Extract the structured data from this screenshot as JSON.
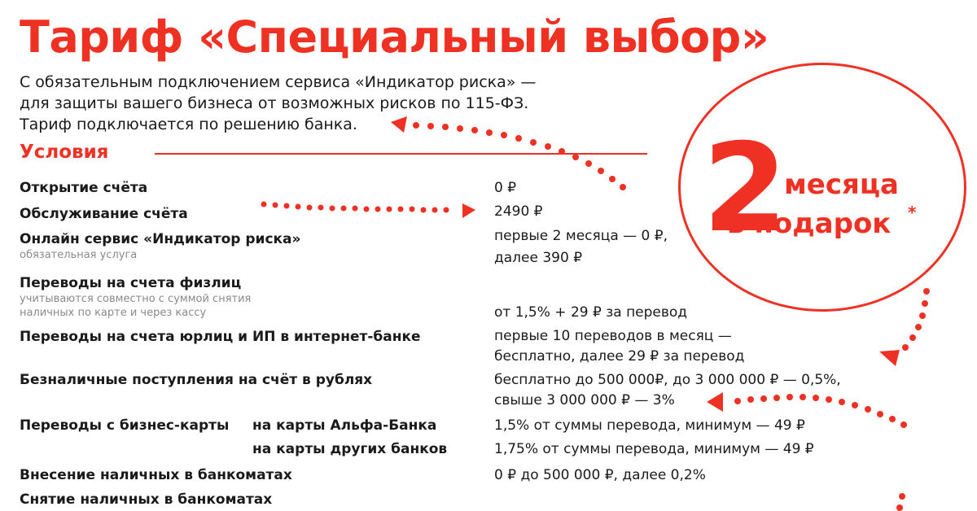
{
  "title": "Тариф «Специальный выбор»",
  "subtitle": [
    "С обязательным подключением сервиса «Индикатор риска» —",
    "для защиты вашего бизнеса от возможных рисков по 115-ФЗ.",
    "Тариф подключается по решению банка."
  ],
  "section_title": "Условия",
  "rows": [
    {
      "label": "Открытие счёта",
      "value": "0 ₽"
    },
    {
      "label": "Обслуживание счёта",
      "value": "2490 ₽"
    },
    {
      "label": "Онлайн сервис «Индикатор риска»",
      "sub": "обязательная услуга",
      "value": "первые 2 месяца — 0 ₽,",
      "value2": "далее 390 ₽"
    },
    {
      "label": "Переводы на счета физлиц",
      "sub": "учитываются совместно с суммой снятия",
      "sub2": "наличных по карте и через кассу",
      "value": "от 1,5% + 29 ₽ за перевод"
    },
    {
      "label": "Переводы на счета юрлиц и ИП в интернет-банке",
      "value": "первые 10 переводов в месяц —",
      "value2": "бесплатно, далее 29 ₽ за перевод"
    },
    {
      "label": "Безналичные поступления на счёт в рублях",
      "value": "бесплатно до 500 000₽, до 3 000 000 ₽ — 0,5%,",
      "value2": "свыше 3 000 000 ₽ — 3%"
    },
    {
      "label": "Переводы с бизнес-карты",
      "label2": "на карты Альфа-Банка",
      "value": "1,5% от суммы перевода, минимум — 49 ₽"
    },
    {
      "label2": "на карты других банков",
      "value": "1,75% от суммы перевода, минимум — 49 ₽"
    },
    {
      "label": "Внесение наличных в банкоматах",
      "value": "0 ₽ до 500 000 ₽, далее 0,2%"
    },
    {
      "label": "Снятие наличных в банкоматах"
    }
  ],
  "badge": {
    "number": "2",
    "line1": "месяца",
    "line2": "в подарок",
    "mark": "*"
  },
  "colors": {
    "accent": "#ef3124",
    "text": "#1a1a1a",
    "muted": "#8a8a8a"
  }
}
